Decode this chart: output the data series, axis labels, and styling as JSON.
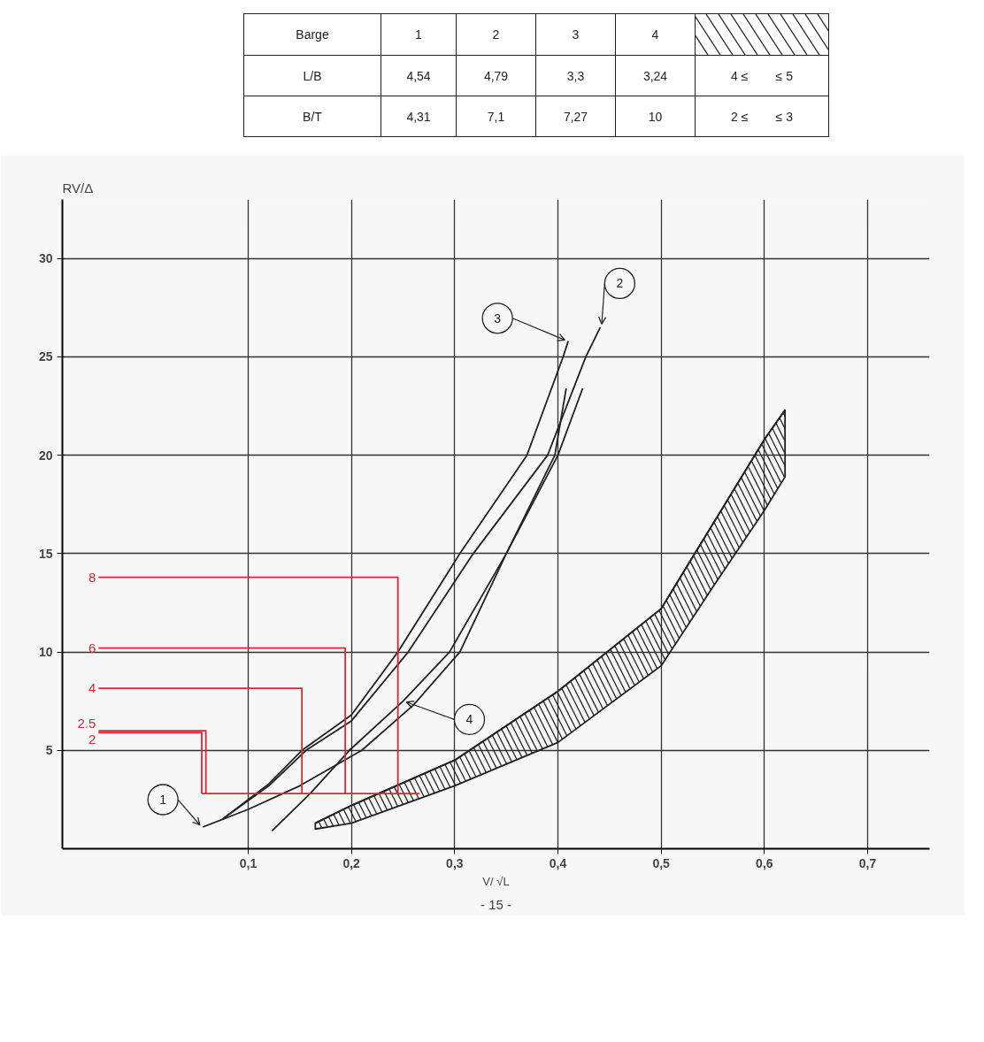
{
  "chart_data": {
    "type": "line",
    "xlabel": "V/ √L",
    "ylabel": "RV/Δ",
    "xlim": [
      -0.08,
      0.76
    ],
    "ylim": [
      0,
      33
    ],
    "xticks": [
      {
        "value": 0.1,
        "label": "0,1"
      },
      {
        "value": 0.2,
        "label": "0,2"
      },
      {
        "value": 0.3,
        "label": "0,3"
      },
      {
        "value": 0.4,
        "label": "0,4"
      },
      {
        "value": 0.5,
        "label": "0,5"
      },
      {
        "value": 0.6,
        "label": "0,6"
      },
      {
        "value": 0.7,
        "label": "0,7"
      }
    ],
    "yticks": [
      5,
      10,
      15,
      20,
      25,
      30
    ],
    "grid": true,
    "series": [
      {
        "name": "1",
        "color": "#222222",
        "x": [
          0.056,
          0.1,
          0.15,
          0.21,
          0.26,
          0.305,
          0.35,
          0.4,
          0.424
        ],
        "values": [
          1.1,
          2.0,
          3.2,
          5.0,
          7.3,
          10,
          15,
          20,
          23.4
        ]
      },
      {
        "name": "2",
        "color": "#222222",
        "x": [
          0.075,
          0.12,
          0.156,
          0.2,
          0.255,
          0.318,
          0.39,
          0.427,
          0.441
        ],
        "values": [
          1.5,
          3.2,
          5,
          6.5,
          10,
          15,
          20,
          25,
          26.5
        ]
      },
      {
        "name": "3",
        "color": "#222222",
        "x": [
          0.075,
          0.12,
          0.152,
          0.2,
          0.245,
          0.305,
          0.37,
          0.405,
          0.41
        ],
        "values": [
          1.5,
          3.3,
          5,
          6.8,
          10,
          15,
          20,
          25,
          25.8
        ]
      },
      {
        "name": "4",
        "color": "#222222",
        "x": [
          0.123,
          0.16,
          0.198,
          0.25,
          0.295,
          0.35,
          0.397,
          0.408
        ],
        "values": [
          0.9,
          2.8,
          5,
          7.5,
          10,
          15,
          20,
          23.4
        ]
      },
      {
        "color": "#222222",
        "x": [
          0.165,
          0.2,
          0.3,
          0.4,
          0.5,
          0.55,
          0.6,
          0.62
        ],
        "values": [
          1.3,
          2.2,
          4.5,
          8.0,
          12.2,
          16.5,
          20.8,
          22.3
        ],
        "upper": [
          1.3,
          2.2,
          4.5,
          8.0,
          12.2,
          16.5,
          20.8,
          22.3
        ],
        "lower": [
          1.0,
          1.3,
          3.2,
          5.4,
          9.3,
          13.3,
          17.2,
          18.9
        ]
      },
      {
        "name": "8",
        "color": "#d42a35",
        "x": [
          -0.045,
          0.245,
          0.245
        ],
        "values": [
          13.8,
          13.8,
          2.8
        ]
      },
      {
        "name": "6",
        "color": "#d42a35",
        "x": [
          -0.045,
          0.194,
          0.194
        ],
        "values": [
          10.2,
          10.2,
          2.8
        ]
      },
      {
        "name": "4",
        "color": "#d42a35",
        "x": [
          -0.045,
          0.152,
          0.152
        ],
        "values": [
          8.15,
          8.15,
          2.8
        ]
      },
      {
        "name": "2.5",
        "color": "#d42a35",
        "x": [
          -0.045,
          0.059,
          0.059
        ],
        "values": [
          6.0,
          6.0,
          2.8
        ]
      },
      {
        "name": "2",
        "color": "#d42a35",
        "x": [
          -0.045,
          0.055,
          0.055
        ],
        "values": [
          5.9,
          5.9,
          2.8
        ]
      },
      {
        "color": "#d42a35",
        "x": [
          0.055,
          0.266
        ],
        "values": [
          2.8,
          2.8
        ]
      }
    ],
    "annotations": [
      "Barge",
      "1",
      "2",
      "3",
      "4",
      "L/B",
      "4,54",
      "4,79",
      "3,3",
      "3,24",
      "4 ≤        ≤ 5",
      "B/T",
      "4,31",
      "7,1",
      "7,27",
      "10",
      "2 ≤        ≤ 3",
      "- 15 -"
    ]
  }
}
